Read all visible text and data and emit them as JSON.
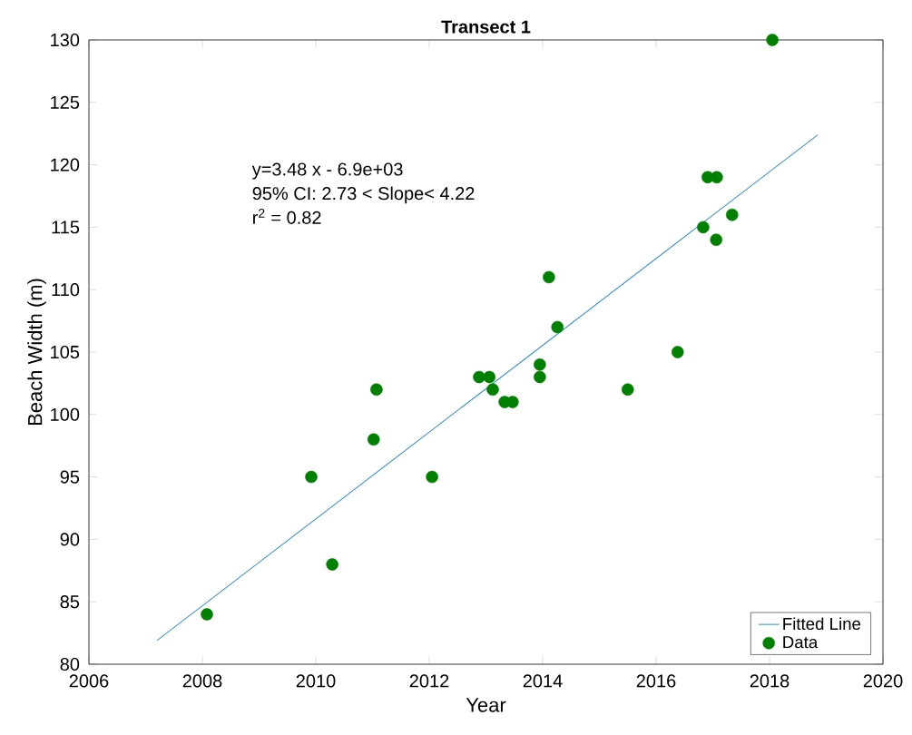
{
  "chart_data": {
    "type": "scatter",
    "title": "Transect 1",
    "xlabel": "Year",
    "ylabel": "Beach Width (m)",
    "xlim": [
      2006,
      2020
    ],
    "xticks": [
      2006,
      2008,
      2010,
      2012,
      2014,
      2016,
      2018,
      2020
    ],
    "ylim": [
      80,
      130
    ],
    "yticks": [
      80,
      85,
      90,
      95,
      100,
      105,
      110,
      115,
      120,
      125,
      130
    ],
    "grid": false,
    "legend": "bottom right",
    "annotations": [
      "y=3.48 x - 6.9e+03",
      "95% CI: 2.73 < Slope< 4.22",
      "r$^{2}$ = 0.82"
    ],
    "series": [
      {
        "name": "Fitted Line",
        "type": "line",
        "color": "#3b93cc",
        "marker": "none",
        "x": [
          2007.2,
          2018.85
        ],
        "values": [
          81.9,
          122.4
        ]
      },
      {
        "name": "Data",
        "color": "#008000",
        "marker": "circle",
        "x": [
          2008.08,
          2009.92,
          2010.29,
          2011.02,
          2011.07,
          2012.05,
          2012.88,
          2013.06,
          2013.12,
          2013.33,
          2013.47,
          2013.95,
          2013.95,
          2014.11,
          2014.26,
          2015.5,
          2016.38,
          2016.83,
          2016.91,
          2017.07,
          2017.06,
          2017.34,
          2018.05
        ],
        "values": [
          84,
          95,
          88,
          98,
          102,
          95,
          103,
          103,
          102,
          101,
          101,
          104,
          103,
          111,
          107,
          102,
          105,
          115,
          119,
          119,
          114,
          116,
          130
        ]
      }
    ]
  }
}
